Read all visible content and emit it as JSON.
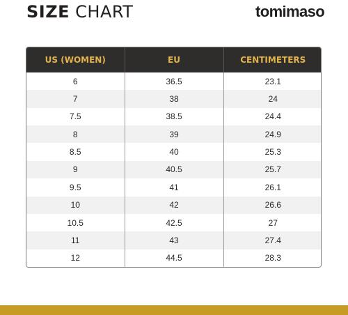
{
  "header": {
    "title_bold": "SIZE",
    "title_light": "CHART",
    "brand": "tomimaso"
  },
  "table": {
    "columns": [
      "US (WOMEN)",
      "EU",
      "CENTIMETERS"
    ],
    "rows": [
      [
        "6",
        "36.5",
        "23.1"
      ],
      [
        "7",
        "38",
        "24"
      ],
      [
        "7.5",
        "38.5",
        "24.4"
      ],
      [
        "8",
        "39",
        "24.9"
      ],
      [
        "8.5",
        "40",
        "25.3"
      ],
      [
        "9",
        "40.5",
        "25.7"
      ],
      [
        "9.5",
        "41",
        "26.1"
      ],
      [
        "10",
        "42",
        "26.6"
      ],
      [
        "10.5",
        "42.5",
        "27"
      ],
      [
        "11",
        "43",
        "27.4"
      ],
      [
        "12",
        "44.5",
        "28.3"
      ]
    ],
    "header_bg": "#2f2c2c",
    "header_text_color": "#e2b34c",
    "stripe_color": "#f1f1f1"
  },
  "footer": {
    "accent_color": "#c69c24"
  }
}
